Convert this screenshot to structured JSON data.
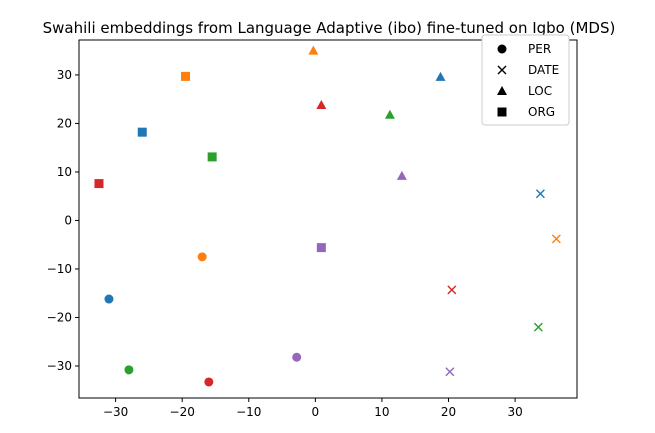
{
  "chart_data": {
    "type": "scatter",
    "title": "Swahili embeddings from Language Adaptive (ibo) fine-tuned on Igbo (MDS)",
    "xlabel": "",
    "ylabel": "",
    "xlim": [
      -35.5,
      39.3
    ],
    "ylim": [
      -36.6,
      37.2
    ],
    "xticks": [
      -30,
      -20,
      -10,
      0,
      10,
      20,
      30
    ],
    "yticks": [
      -30,
      -20,
      -10,
      0,
      10,
      20,
      30
    ],
    "grid": false,
    "legend_position": "top-right",
    "legend": [
      {
        "label": "PER",
        "marker": "circle"
      },
      {
        "label": "DATE",
        "marker": "x"
      },
      {
        "label": "LOC",
        "marker": "triangle"
      },
      {
        "label": "ORG",
        "marker": "square"
      }
    ],
    "colors": {
      "blue": "#1f77b4",
      "orange": "#ff7f0e",
      "green": "#2ca02c",
      "red": "#d62728",
      "purple": "#9467bd"
    },
    "points": [
      {
        "x": -31.0,
        "y": -16.2,
        "marker": "circle",
        "color": "#1f77b4"
      },
      {
        "x": -17.0,
        "y": -7.5,
        "marker": "circle",
        "color": "#ff7f0e"
      },
      {
        "x": -28.0,
        "y": -30.8,
        "marker": "circle",
        "color": "#2ca02c"
      },
      {
        "x": -16.0,
        "y": -33.3,
        "marker": "circle",
        "color": "#d62728"
      },
      {
        "x": -2.8,
        "y": -28.2,
        "marker": "circle",
        "color": "#9467bd"
      },
      {
        "x": 33.8,
        "y": 5.5,
        "marker": "x",
        "color": "#1f77b4"
      },
      {
        "x": 36.2,
        "y": -3.8,
        "marker": "x",
        "color": "#ff7f0e"
      },
      {
        "x": 33.5,
        "y": -22.0,
        "marker": "x",
        "color": "#2ca02c"
      },
      {
        "x": 20.5,
        "y": -14.3,
        "marker": "x",
        "color": "#d62728"
      },
      {
        "x": 20.2,
        "y": -31.2,
        "marker": "x",
        "color": "#9467bd"
      },
      {
        "x": 18.8,
        "y": 29.6,
        "marker": "triangle",
        "color": "#1f77b4"
      },
      {
        "x": -0.3,
        "y": 35.0,
        "marker": "triangle",
        "color": "#ff7f0e"
      },
      {
        "x": 11.2,
        "y": 21.8,
        "marker": "triangle",
        "color": "#2ca02c"
      },
      {
        "x": 0.9,
        "y": 23.8,
        "marker": "triangle",
        "color": "#d62728"
      },
      {
        "x": 13.0,
        "y": 9.2,
        "marker": "triangle",
        "color": "#9467bd"
      },
      {
        "x": -26.0,
        "y": 18.2,
        "marker": "square",
        "color": "#1f77b4"
      },
      {
        "x": -19.5,
        "y": 29.7,
        "marker": "square",
        "color": "#ff7f0e"
      },
      {
        "x": -15.5,
        "y": 13.1,
        "marker": "square",
        "color": "#2ca02c"
      },
      {
        "x": -32.5,
        "y": 7.6,
        "marker": "square",
        "color": "#d62728"
      },
      {
        "x": 0.9,
        "y": -5.6,
        "marker": "square",
        "color": "#9467bd"
      }
    ]
  }
}
